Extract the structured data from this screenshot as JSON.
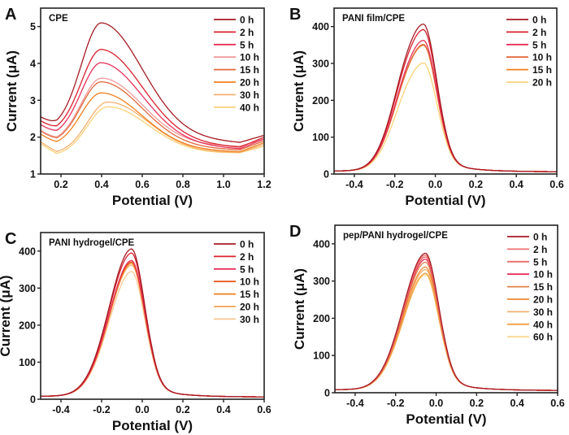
{
  "chart_data": [
    {
      "type": "line",
      "panel_letter": "A",
      "title": "CPE",
      "xlabel": "Potential (V)",
      "ylabel": "Current (μA)",
      "xlim": [
        0.1,
        1.2
      ],
      "ylim": [
        1,
        5.5
      ],
      "xticks": [
        0.2,
        0.4,
        0.6,
        0.8,
        1.0,
        1.2
      ],
      "xtick_labels": [
        "0.2",
        "0.4",
        "0.6",
        "0.8",
        "1.0",
        "1.2"
      ],
      "yticks": [
        1,
        2,
        3,
        4,
        5
      ],
      "ytick_labels": [
        "1",
        "2",
        "3",
        "4",
        "5"
      ],
      "legend": "top-right",
      "peak_potential": 0.4,
      "series": [
        {
          "name": "0 h",
          "color": "#a51c24",
          "peak": 5.1,
          "min_left": 2.2,
          "end_right": 2.05,
          "min_right": 1.85
        },
        {
          "name": "2 h",
          "color": "#d9212e",
          "peak": 4.38,
          "min_left": 2.1,
          "end_right": 2.0,
          "min_right": 1.72
        },
        {
          "name": "5 h",
          "color": "#e8305a",
          "peak": 4.02,
          "min_left": 2.0,
          "end_right": 1.95,
          "min_right": 1.68
        },
        {
          "name": "10 h",
          "color": "#f29a9a",
          "peak": 3.6,
          "min_left": 1.85,
          "end_right": 1.95,
          "min_right": 1.75
        },
        {
          "name": "15 h",
          "color": "#e0683c",
          "peak": 3.5,
          "min_left": 1.83,
          "end_right": 1.9,
          "min_right": 1.65
        },
        {
          "name": "20 h",
          "color": "#f08020",
          "peak": 3.2,
          "min_left": 1.75,
          "end_right": 1.85,
          "min_right": 1.6
        },
        {
          "name": "30 h",
          "color": "#f5b070",
          "peak": 2.95,
          "min_left": 1.55,
          "end_right": 1.8,
          "min_right": 1.58
        },
        {
          "name": "40 h",
          "color": "#fad27a",
          "peak": 2.82,
          "min_left": 1.5,
          "end_right": 1.75,
          "min_right": 1.57
        }
      ]
    },
    {
      "type": "line",
      "panel_letter": "B",
      "title": "PANI film/CPE",
      "xlabel": "Potential (V)",
      "ylabel": "Current (μA)",
      "xlim": [
        -0.5,
        0.6
      ],
      "ylim": [
        0,
        450
      ],
      "xticks": [
        -0.4,
        -0.2,
        0.0,
        0.2,
        0.4,
        0.6
      ],
      "xtick_labels": [
        "-0.4",
        "-0.2",
        "0.0",
        "0.2",
        "0.4",
        "0.6"
      ],
      "yticks": [
        0,
        100,
        200,
        300,
        400
      ],
      "ytick_labels": [
        "0",
        "100",
        "200",
        "300",
        "400"
      ],
      "legend": "top-right",
      "peak_potential": -0.06,
      "series": [
        {
          "name": "0 h",
          "color": "#a51c24",
          "peak": 393
        },
        {
          "name": "2 h",
          "color": "#d9212e",
          "peak": 378
        },
        {
          "name": "5 h",
          "color": "#e8305a",
          "peak": 349
        },
        {
          "name": "10 h",
          "color": "#e0683c",
          "peak": 338
        },
        {
          "name": "15 h",
          "color": "#f08020",
          "peak": 336
        },
        {
          "name": "20 h",
          "color": "#fad27a",
          "peak": 288
        }
      ]
    },
    {
      "type": "line",
      "panel_letter": "C",
      "title": "PANI hydrogel/CPE",
      "xlabel": "Potential (V)",
      "ylabel": "Current (μA)",
      "xlim": [
        -0.5,
        0.6
      ],
      "ylim": [
        0,
        450
      ],
      "xticks": [
        -0.4,
        -0.2,
        0.0,
        0.2,
        0.4,
        0.6
      ],
      "xtick_labels": [
        "-0.4",
        "-0.2",
        "0.0",
        "0.2",
        "0.4",
        "0.6"
      ],
      "yticks": [
        0,
        100,
        200,
        300,
        400
      ],
      "ytick_labels": [
        "0",
        "100",
        "200",
        "300",
        "400"
      ],
      "legend": "top-right",
      "peak_potential": -0.055,
      "series": [
        {
          "name": "0 h",
          "color": "#a51c24",
          "peak": 393
        },
        {
          "name": "2 h",
          "color": "#d9212e",
          "peak": 382
        },
        {
          "name": "5 h",
          "color": "#e8305a",
          "peak": 362
        },
        {
          "name": "10 h",
          "color": "#e85a20",
          "peak": 358
        },
        {
          "name": "15 h",
          "color": "#f08020",
          "peak": 355
        },
        {
          "name": "20 h",
          "color": "#f5a050",
          "peak": 350
        },
        {
          "name": "30 h",
          "color": "#f8c890",
          "peak": 332
        }
      ]
    },
    {
      "type": "line",
      "panel_letter": "D",
      "title": "pep/PANI hydrogel/CPE",
      "xlabel": "Potential (V)",
      "ylabel": "Current (μA)",
      "xlim": [
        -0.5,
        0.6
      ],
      "ylim": [
        0,
        450
      ],
      "xticks": [
        -0.4,
        -0.2,
        0.0,
        0.2,
        0.4,
        0.6
      ],
      "xtick_labels": [
        "-0.4",
        "-0.2",
        "0.0",
        "0.2",
        "0.4",
        "0.6"
      ],
      "yticks": [
        0,
        100,
        200,
        300,
        400
      ],
      "ytick_labels": [
        "0",
        "100",
        "200",
        "300",
        "400"
      ],
      "legend": "top-right",
      "peak_potential": -0.055,
      "series": [
        {
          "name": "0 h",
          "color": "#a51c24",
          "peak": 362
        },
        {
          "name": "2 h",
          "color": "#ee7070",
          "peak": 357
        },
        {
          "name": "5 h",
          "color": "#f06a6a",
          "peak": 352
        },
        {
          "name": "10 h",
          "color": "#e8305a",
          "peak": 346
        },
        {
          "name": "15 h",
          "color": "#e0804a",
          "peak": 338
        },
        {
          "name": "20 h",
          "color": "#f08a30",
          "peak": 325
        },
        {
          "name": "30 h",
          "color": "#f5b070",
          "peak": 318
        },
        {
          "name": "40 h",
          "color": "#f5a040",
          "peak": 308
        },
        {
          "name": "60 h",
          "color": "#fad890",
          "peak": 304
        }
      ]
    }
  ]
}
